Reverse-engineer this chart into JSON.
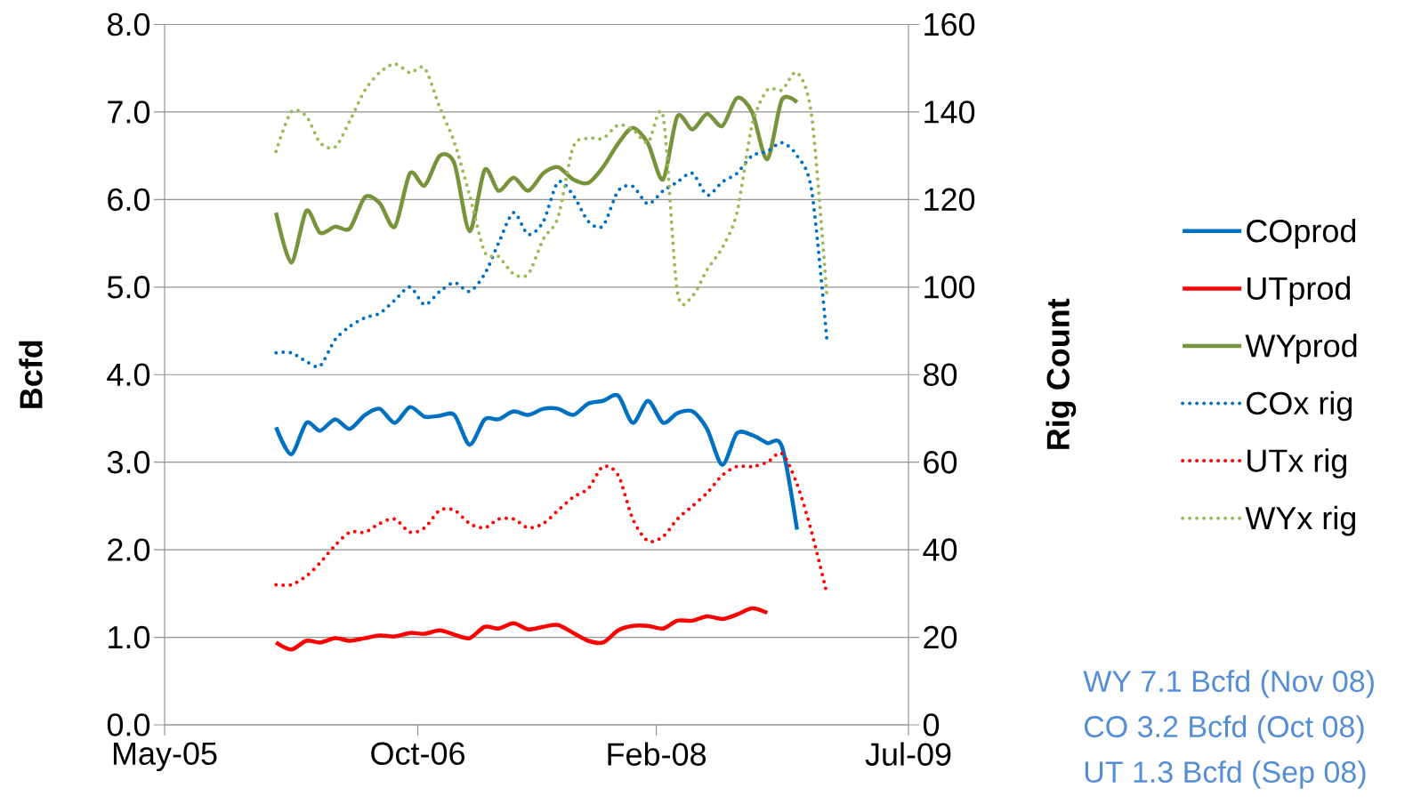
{
  "chart_data": {
    "type": "line",
    "ylabel": "Bcfd",
    "y2label": "Rig Count",
    "x": [
      "2005-12-15",
      "2006-01-15",
      "2006-02-15",
      "2006-03-15",
      "2006-04-15",
      "2006-05-15",
      "2006-06-15",
      "2006-07-15",
      "2006-08-15",
      "2006-09-15",
      "2006-10-15",
      "2006-11-15",
      "2006-12-15",
      "2007-01-15",
      "2007-02-15",
      "2007-03-15",
      "2007-04-15",
      "2007-05-15",
      "2007-06-15",
      "2007-07-15",
      "2007-08-15",
      "2007-09-15",
      "2007-10-15",
      "2007-11-15",
      "2007-12-15",
      "2008-01-15",
      "2008-02-15",
      "2008-03-15",
      "2008-04-15",
      "2008-05-15",
      "2008-06-15",
      "2008-07-15",
      "2008-08-15",
      "2008-09-15",
      "2008-10-15",
      "2008-11-15",
      "2008-12-15",
      "2009-01-15"
    ],
    "series": [
      {
        "name": "COprod",
        "color": "#0070c0",
        "line_style": "solid",
        "values": [
          3.4,
          3.09,
          3.45,
          3.36,
          3.49,
          3.38,
          3.54,
          3.61,
          3.45,
          3.63,
          3.52,
          3.53,
          3.54,
          3.2,
          3.49,
          3.49,
          3.58,
          3.54,
          3.61,
          3.61,
          3.54,
          3.67,
          3.7,
          3.76,
          3.45,
          3.7,
          3.45,
          3.56,
          3.58,
          3.38,
          2.97,
          3.33,
          3.31,
          3.22,
          3.18,
          2.23,
          null,
          null
        ]
      },
      {
        "name": "UTprod",
        "color": "#ff0000",
        "line_style": "solid",
        "values": [
          0.94,
          0.86,
          0.96,
          0.94,
          0.99,
          0.96,
          0.99,
          1.02,
          1.01,
          1.05,
          1.04,
          1.08,
          1.03,
          0.99,
          1.12,
          1.1,
          1.16,
          1.09,
          1.12,
          1.14,
          1.05,
          0.96,
          0.94,
          1.08,
          1.13,
          1.13,
          1.1,
          1.19,
          1.19,
          1.24,
          1.21,
          1.26,
          1.33,
          1.28,
          null,
          null,
          null,
          null
        ]
      },
      {
        "name": "WYprod",
        "color": "#77933c",
        "line_style": "solid",
        "values": [
          5.85,
          5.28,
          5.87,
          5.62,
          5.69,
          5.67,
          6.03,
          5.96,
          5.69,
          6.3,
          6.16,
          6.5,
          6.41,
          5.64,
          6.34,
          6.1,
          6.25,
          6.1,
          6.3,
          6.37,
          6.23,
          6.19,
          6.37,
          6.64,
          6.82,
          6.64,
          6.23,
          6.95,
          6.8,
          6.98,
          6.84,
          7.16,
          7.0,
          6.46,
          7.14,
          7.11,
          null,
          null
        ]
      },
      {
        "name": "COx rig",
        "color": "#0070c0",
        "line_style": "dotted",
        "axis": "y2",
        "values": [
          85,
          85,
          83,
          82,
          88,
          91,
          93,
          94,
          97,
          100,
          96,
          99,
          101,
          99,
          103,
          110,
          117,
          112,
          115,
          124,
          121,
          115,
          114,
          122,
          123,
          119,
          122,
          124,
          126,
          121,
          124,
          126,
          130,
          131,
          133,
          130,
          122,
          88
        ]
      },
      {
        "name": "UTx rig",
        "color": "#ff0000",
        "line_style": "dotted",
        "axis": "y2",
        "values": [
          32,
          32,
          34,
          37,
          41,
          44,
          44,
          46,
          47,
          44,
          45,
          49,
          49,
          46,
          45,
          47,
          47,
          45,
          46,
          49,
          52,
          54,
          59,
          57,
          47,
          42,
          43,
          47,
          50,
          53,
          57,
          59,
          59,
          60,
          62,
          55,
          44,
          30
        ]
      },
      {
        "name": "WYx rig",
        "color": "#9bbb59",
        "line_style": "dotted",
        "axis": "y2",
        "values": [
          131,
          140,
          139,
          133,
          132,
          138,
          145,
          149,
          151,
          149,
          150,
          141,
          133,
          121,
          108,
          107,
          103,
          103,
          111,
          116,
          132,
          134,
          134,
          137,
          136,
          133,
          139,
          99,
          98,
          104,
          109,
          117,
          137,
          145,
          145,
          149,
          139,
          98
        ]
      }
    ],
    "xlim": [
      "2005-05-01",
      "2009-07-01"
    ],
    "xticks": [
      {
        "value": "2005-05-01",
        "label": "May-05"
      },
      {
        "value": "2006-10-01",
        "label": "Oct-06"
      },
      {
        "value": "2008-02-01",
        "label": "Feb-08"
      },
      {
        "value": "2009-07-01",
        "label": "Jul-09"
      }
    ],
    "ylim": [
      0,
      8
    ],
    "yticks": [
      {
        "value": 0,
        "label": "0.0"
      },
      {
        "value": 1,
        "label": "1.0"
      },
      {
        "value": 2,
        "label": "2.0"
      },
      {
        "value": 3,
        "label": "3.0"
      },
      {
        "value": 4,
        "label": "4.0"
      },
      {
        "value": 5,
        "label": "5.0"
      },
      {
        "value": 6,
        "label": "6.0"
      },
      {
        "value": 7,
        "label": "7.0"
      },
      {
        "value": 8,
        "label": "8.0"
      }
    ],
    "y2lim": [
      0,
      160
    ],
    "y2ticks": [
      0,
      20,
      40,
      60,
      80,
      100,
      120,
      140,
      160
    ],
    "grid": "y",
    "legend": "right",
    "marker": "none",
    "annotations": [
      "WY 7.1 Bcfd (Nov 08)",
      "CO 3.2 Bcfd (Oct 08)",
      "UT 1.3 Bcfd (Sep 08)"
    ]
  }
}
